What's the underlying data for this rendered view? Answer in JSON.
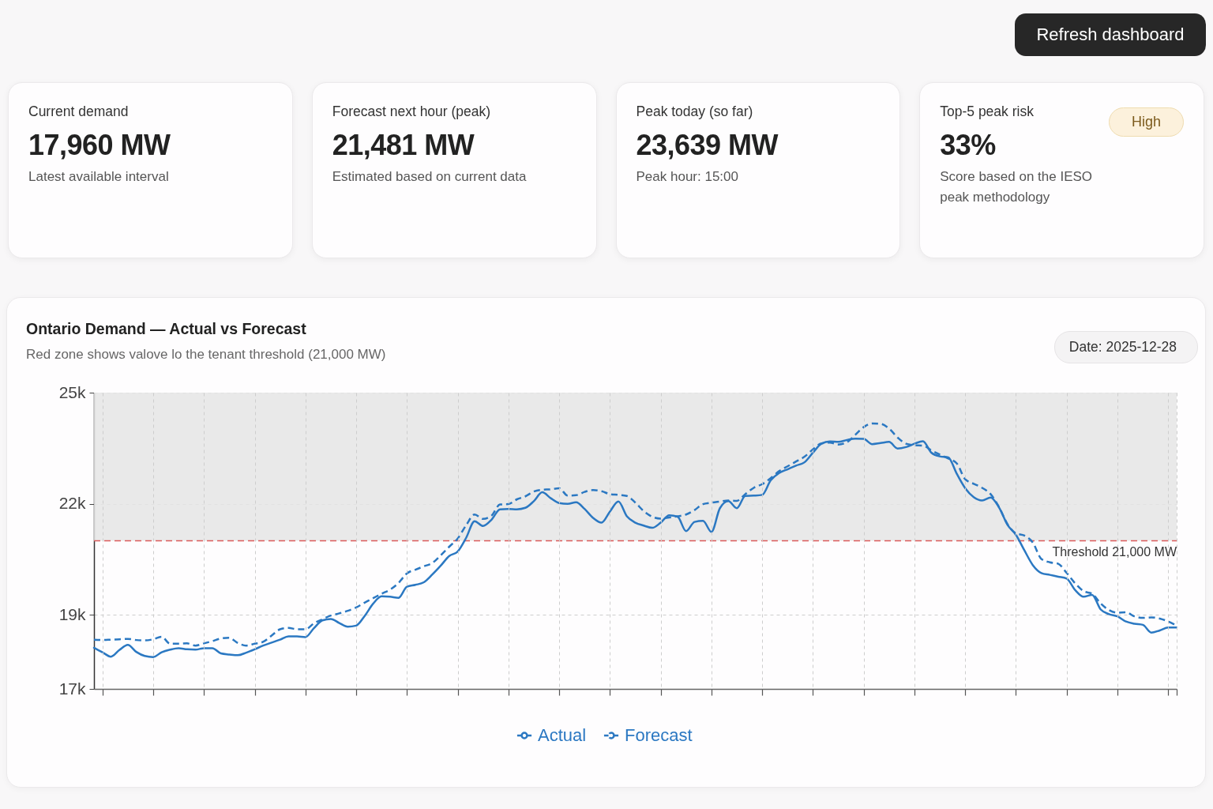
{
  "chart_data": [
    {
      "type": "other",
      "annotations": [
        "Refresh dashboard"
      ]
    },
    {
      "type": "other",
      "title": "Current demand",
      "annotations": [
        "17,960 MW",
        "Latest available interval"
      ]
    },
    {
      "type": "other",
      "title": "Forecast next hour (peak)",
      "annotations": [
        "21,481 MW",
        "Estimated based on current data"
      ]
    },
    {
      "type": "other",
      "title": "Peak today (so far)",
      "annotations": [
        "23,639 MW",
        "Peak hour: 15:00"
      ]
    },
    {
      "type": "other",
      "title": "Top-5 peak risk",
      "annotations": [
        "33%",
        "Score based on the IESO peak methodology",
        "High"
      ]
    },
    {
      "type": "line",
      "title": "Ontario Demand — Actual vs Forecast",
      "subtitle": "Red zone shows valove lo the tenant threshold (21,000 MW)",
      "annotations": [
        "Date: 2025-12-28"
      ],
      "categories": [
        null,
        null,
        null,
        null,
        null,
        null,
        null,
        null,
        null,
        null,
        null,
        null,
        null,
        null,
        null,
        null,
        null,
        null,
        null,
        null,
        null,
        null,
        null,
        null,
        null,
        null,
        null,
        null,
        null,
        null,
        null,
        null,
        null,
        null,
        null,
        null,
        null,
        null,
        null,
        null,
        null,
        null,
        null,
        null,
        null,
        null,
        null,
        null,
        null,
        null,
        null,
        null,
        null,
        null,
        null,
        null,
        null,
        null,
        null,
        null,
        null,
        null,
        null,
        null,
        null,
        null,
        null,
        null,
        null,
        null,
        null,
        null,
        null,
        null,
        null,
        null,
        null,
        null,
        null,
        null,
        null,
        null,
        null,
        null,
        null,
        null,
        null,
        null,
        null,
        null,
        null,
        null,
        null,
        null,
        null,
        null,
        null,
        null,
        null,
        null,
        null,
        null,
        null,
        null,
        null,
        null,
        null,
        null,
        null,
        null,
        null,
        null,
        null,
        null,
        null,
        null,
        null,
        null,
        null,
        null,
        null,
        null,
        null,
        null,
        null,
        null,
        null,
        null,
        null
      ],
      "series": [
        {
          "name": "Actual",
          "color": "#2b78c2",
          "line_style": "solid",
          "values": [
            18110,
            17990,
            17870,
            18050,
            18190,
            18000,
            17890,
            17860,
            17990,
            18060,
            18100,
            18070,
            18060,
            18100,
            18100,
            17960,
            17930,
            17910,
            17980,
            18070,
            18170,
            18250,
            18330,
            18420,
            18420,
            18400,
            18640,
            18850,
            18890,
            18780,
            18680,
            18710,
            18970,
            19300,
            19500,
            19490,
            19460,
            19760,
            19810,
            19880,
            20090,
            20330,
            20590,
            20710,
            21080,
            21530,
            21400,
            21570,
            21850,
            21860,
            21850,
            21890,
            22070,
            22310,
            22150,
            22020,
            22000,
            22040,
            21860,
            21620,
            21490,
            21790,
            22060,
            21660,
            21490,
            21410,
            21350,
            21490,
            21690,
            21650,
            21260,
            21510,
            21540,
            21240,
            21880,
            22070,
            21880,
            22210,
            22220,
            22240,
            22630,
            22830,
            22930,
            23030,
            23120,
            23380,
            23620,
            23680,
            23670,
            23720,
            23760,
            23750,
            23610,
            23640,
            23670,
            23490,
            23530,
            23620,
            23690,
            23380,
            23280,
            23250,
            22810,
            22420,
            22180,
            22090,
            22170,
            21900,
            21430,
            21160,
            20740,
            20340,
            20130,
            20080,
            20030,
            19980,
            19670,
            19490,
            19540,
            19150,
            19020,
            18960,
            18820,
            18760,
            18730,
            18520,
            18580,
            18660,
            18660
          ]
        },
        {
          "name": "Forecast",
          "color": "#2b78c2",
          "line_style": "dashed",
          "values": [
            18330,
            18320,
            18330,
            18340,
            18350,
            18320,
            18310,
            18340,
            18410,
            18220,
            18220,
            18230,
            18170,
            18230,
            18290,
            18360,
            18380,
            18240,
            18170,
            18220,
            18270,
            18440,
            18610,
            18650,
            18610,
            18610,
            18770,
            18880,
            18980,
            19040,
            19110,
            19200,
            19330,
            19450,
            19570,
            19680,
            19860,
            20120,
            20220,
            20310,
            20400,
            20610,
            20840,
            21060,
            21420,
            21710,
            21590,
            21680,
            21980,
            21990,
            22120,
            22200,
            22330,
            22380,
            22390,
            22420,
            22220,
            22230,
            22320,
            22370,
            22340,
            22260,
            22240,
            22210,
            22030,
            21800,
            21650,
            21600,
            21630,
            21660,
            21710,
            21830,
            21990,
            22030,
            22060,
            22090,
            22080,
            22260,
            22430,
            22530,
            22690,
            22880,
            23010,
            23140,
            23270,
            23470,
            23630,
            23650,
            23600,
            23660,
            23860,
            24070,
            24170,
            24160,
            24030,
            23790,
            23620,
            23580,
            23570,
            23440,
            23330,
            23220,
            23090,
            22660,
            22540,
            22430,
            22260,
            21910,
            21450,
            21200,
            21140,
            20950,
            20510,
            20420,
            20380,
            20130,
            19850,
            19640,
            19570,
            19310,
            19130,
            19060,
            19070,
            18960,
            18920,
            18930,
            18900,
            18820,
            18710
          ]
        }
      ],
      "ylim": [
        17000,
        25000
      ],
      "yticks": [
        {
          "value": 17000,
          "label": "17k"
        },
        {
          "value": 19000,
          "label": "19k"
        },
        {
          "value": 22000,
          "label": "22k"
        },
        {
          "value": 25000,
          "label": "25k"
        }
      ],
      "tick_labels": "y",
      "grid": true,
      "legend": "bottom",
      "ref_lines": [
        {
          "axis": "y",
          "value": 21000,
          "label": "Threshold 21,000 MW",
          "color": "#dc5c5c",
          "line_style": "dashed"
        }
      ],
      "bands": [
        {
          "axis": "y",
          "from": 21000,
          "to": 25000,
          "color": "#e5e5e5"
        }
      ]
    }
  ]
}
